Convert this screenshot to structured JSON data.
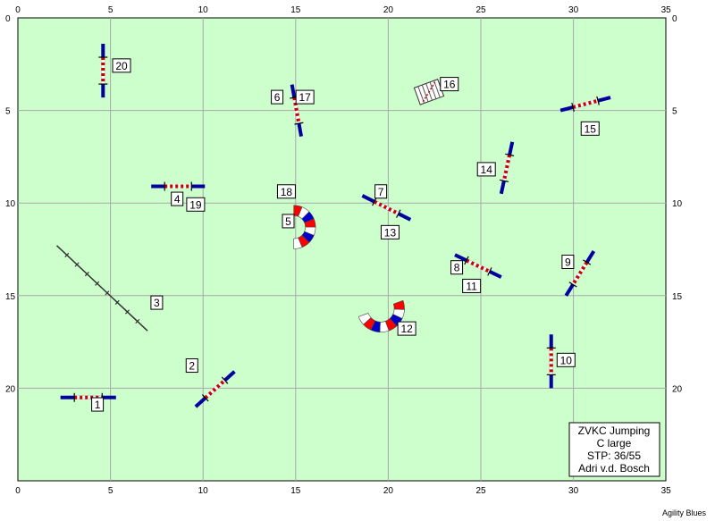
{
  "axis": {
    "x_ticks": [
      "0",
      "5",
      "10",
      "15",
      "20",
      "25",
      "30",
      "35"
    ],
    "y_ticks": [
      "0",
      "5",
      "10",
      "15",
      "20"
    ]
  },
  "info": {
    "lines": [
      "ZVKC Jumping",
      "C large",
      "STP: 36/55",
      "Adri v.d. Bosch"
    ]
  },
  "footer": {
    "text": "Agility Blues"
  },
  "colors": {
    "field": "#ccffcc",
    "grid": "#a8a8a8",
    "bar": "#0000a0",
    "tunnel_red": "#ff0000",
    "tunnel_blue": "#0000cc"
  },
  "obstacles": {
    "jumps": [
      {
        "id": "20",
        "x1": 4.6,
        "y1": 1.4,
        "x2": 4.6,
        "y2": 4.3
      },
      {
        "id": "6-17",
        "x1": 14.8,
        "y1": 3.6,
        "x2": 15.3,
        "y2": 6.4
      },
      {
        "id": "15",
        "x1": 29.3,
        "y1": 5.0,
        "x2": 32.0,
        "y2": 4.3
      },
      {
        "id": "14",
        "x1": 26.7,
        "y1": 6.7,
        "x2": 26.1,
        "y2": 9.5
      },
      {
        "id": "4-19",
        "x1": 7.2,
        "y1": 9.1,
        "x2": 10.1,
        "y2": 9.1
      },
      {
        "id": "7-13",
        "x1": 18.6,
        "y1": 9.6,
        "x2": 21.2,
        "y2": 10.9
      },
      {
        "id": "8-11",
        "x1": 23.6,
        "y1": 12.8,
        "x2": 26.1,
        "y2": 14.0
      },
      {
        "id": "9",
        "x1": 31.1,
        "y1": 12.6,
        "x2": 29.6,
        "y2": 15.0
      },
      {
        "id": "10",
        "x1": 28.8,
        "y1": 17.1,
        "x2": 28.8,
        "y2": 20.0
      },
      {
        "id": "2",
        "x1": 9.6,
        "y1": 21.0,
        "x2": 11.7,
        "y2": 19.1
      },
      {
        "id": "1",
        "x1": 2.3,
        "y1": 20.5,
        "x2": 5.3,
        "y2": 20.5
      }
    ],
    "wall": {
      "x1": 2.1,
      "y1": 12.3,
      "x2": 7.0,
      "y2": 16.9
    },
    "tire": {
      "x": 22.2,
      "y": 4.0
    },
    "tunnels": [
      {
        "id": "5-18",
        "cx": 14.9,
        "cy": 11.3,
        "r": 0.9,
        "start": -90,
        "end": 90,
        "width": 0.55
      },
      {
        "id": "12",
        "cx": 19.6,
        "cy": 15.7,
        "r": 1.0,
        "start": -20,
        "end": 160,
        "width": 0.55
      }
    ]
  },
  "numbers": [
    {
      "text": "20",
      "x": 5.6,
      "y": 2.6
    },
    {
      "text": "6",
      "x": 14.0,
      "y": 4.3
    },
    {
      "text": "17",
      "x": 15.5,
      "y": 4.3
    },
    {
      "text": "16",
      "x": 23.3,
      "y": 3.6
    },
    {
      "text": "15",
      "x": 30.9,
      "y": 6.0
    },
    {
      "text": "14",
      "x": 25.3,
      "y": 8.2
    },
    {
      "text": "4",
      "x": 8.6,
      "y": 9.8
    },
    {
      "text": "19",
      "x": 9.6,
      "y": 10.1
    },
    {
      "text": "18",
      "x": 14.5,
      "y": 9.4
    },
    {
      "text": "7",
      "x": 19.6,
      "y": 9.4
    },
    {
      "text": "5",
      "x": 14.6,
      "y": 11.0
    },
    {
      "text": "13",
      "x": 20.1,
      "y": 11.6
    },
    {
      "text": "8",
      "x": 23.7,
      "y": 13.5
    },
    {
      "text": "11",
      "x": 24.5,
      "y": 14.5
    },
    {
      "text": "9",
      "x": 29.7,
      "y": 13.2
    },
    {
      "text": "3",
      "x": 7.5,
      "y": 15.4
    },
    {
      "text": "12",
      "x": 21.0,
      "y": 16.8
    },
    {
      "text": "10",
      "x": 29.6,
      "y": 18.5
    },
    {
      "text": "2",
      "x": 9.4,
      "y": 18.8
    },
    {
      "text": "1",
      "x": 4.3,
      "y": 20.9
    }
  ]
}
